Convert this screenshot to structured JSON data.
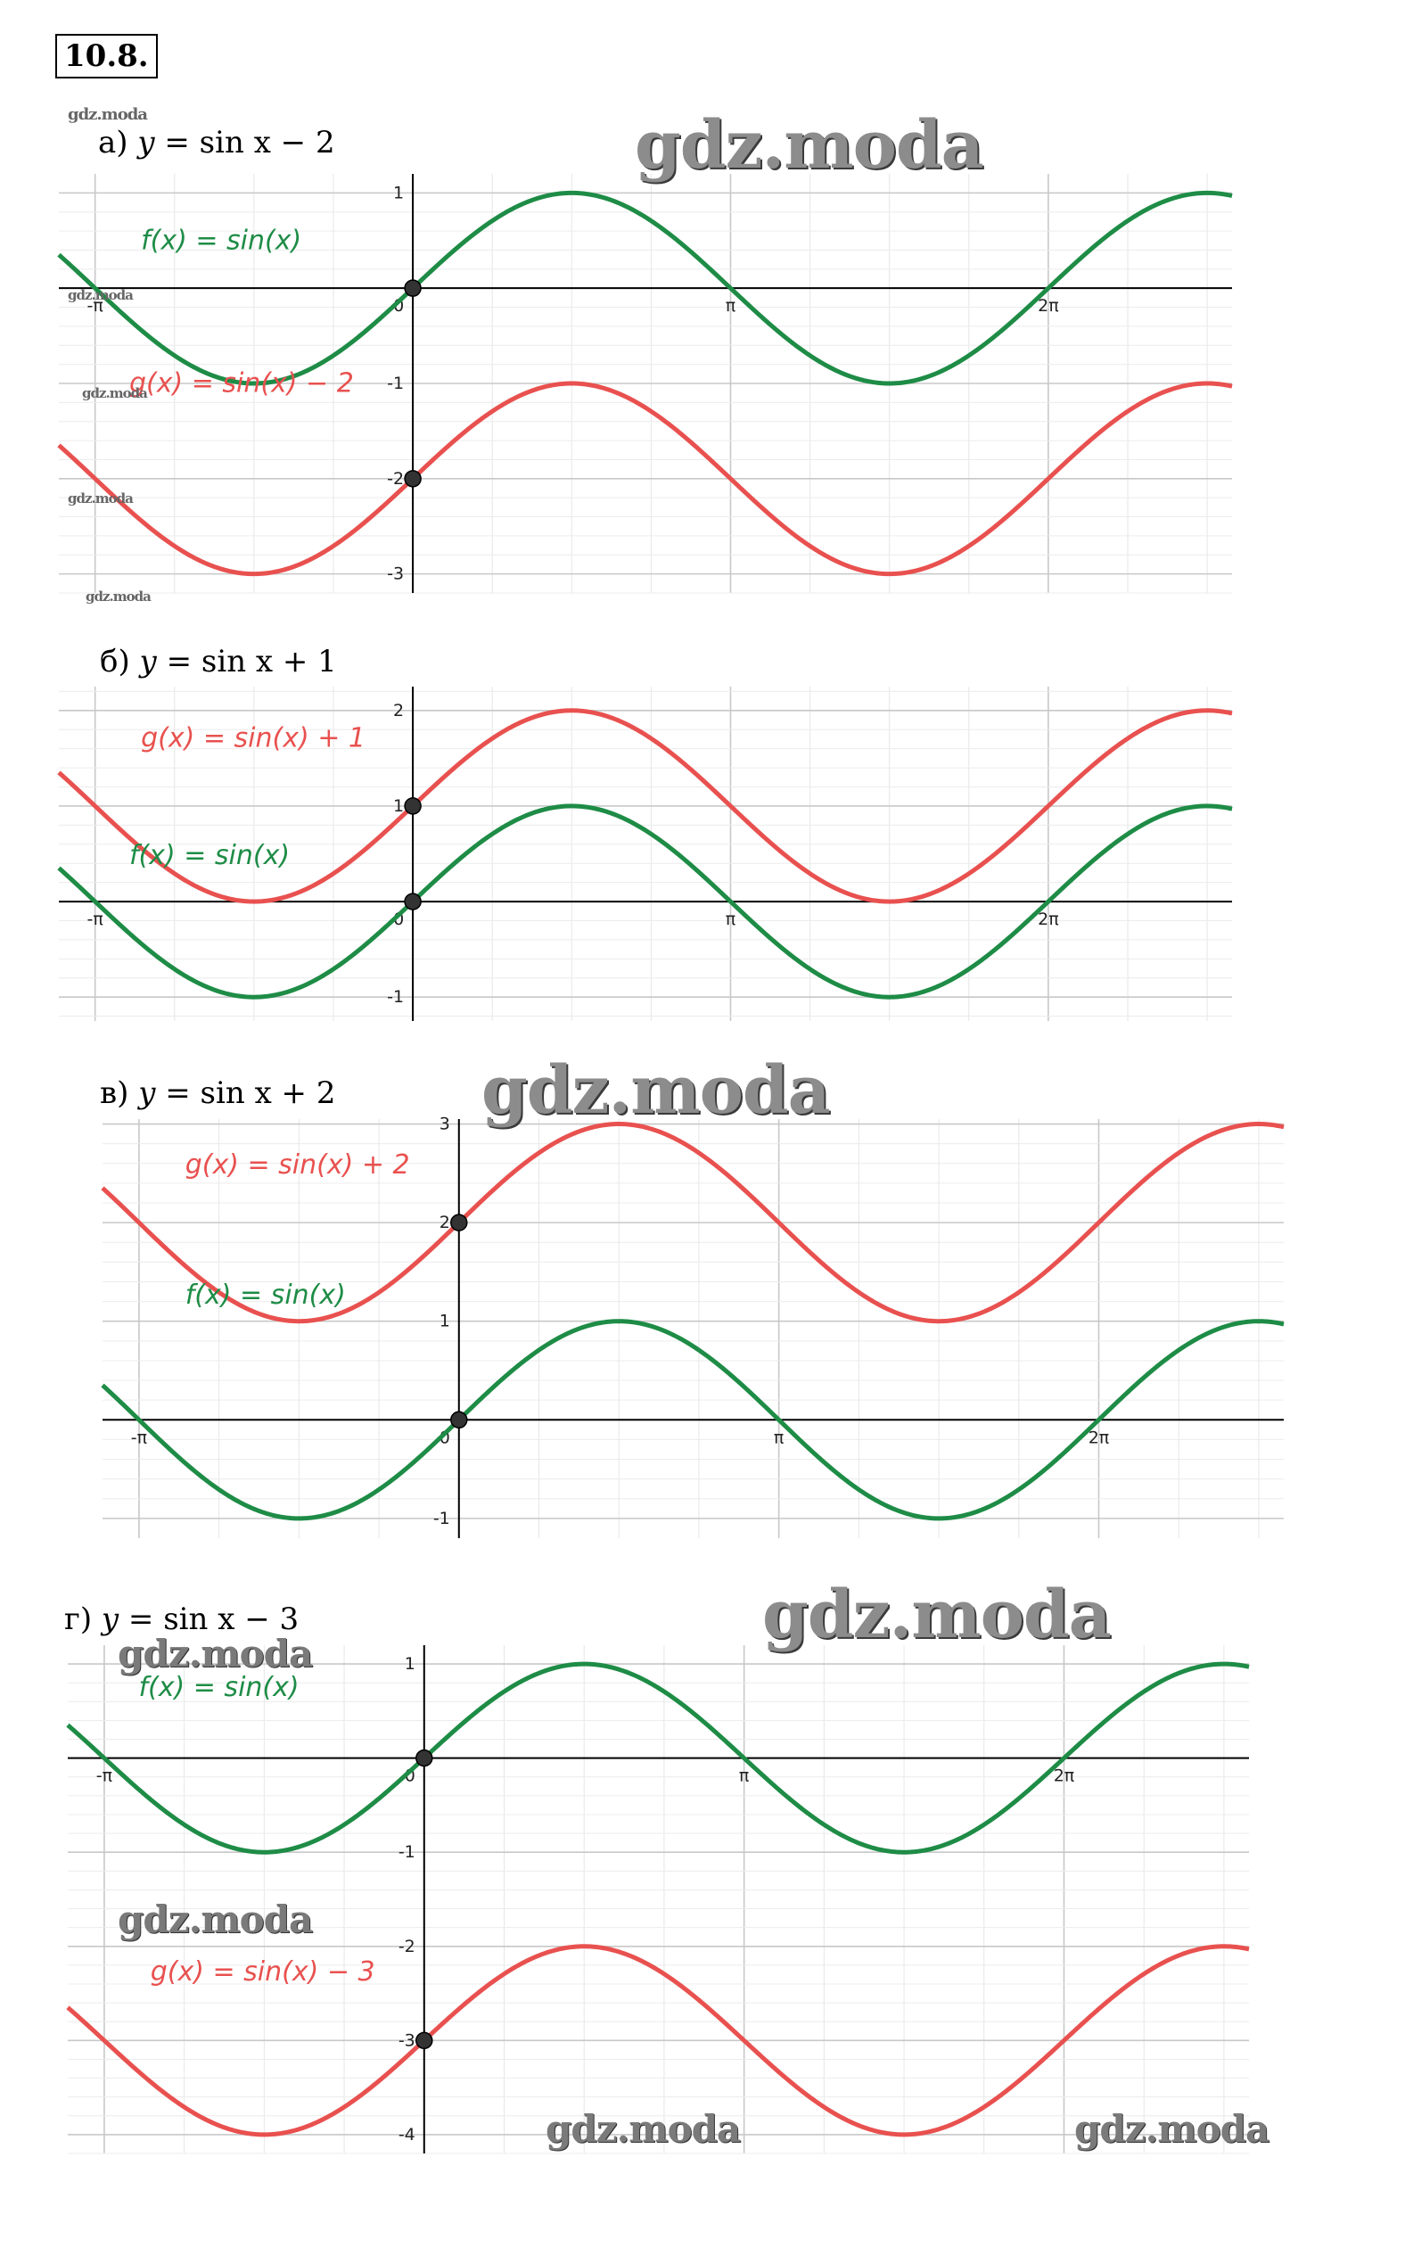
{
  "task_number": "10.8.",
  "watermarks": {
    "big": "gdz.moda",
    "small": "gdz.moda"
  },
  "colors": {
    "f_color": "#1e8c46",
    "g_color": "#e8514f",
    "grid": "#d9d9d9",
    "axis": "#000000",
    "point": "#333333"
  },
  "parts": [
    {
      "prefix": "а) ",
      "var": "y",
      "rest": " = sin x − 2"
    },
    {
      "prefix": "б) ",
      "var": "y",
      "rest": " = sin x + 1"
    },
    {
      "prefix": "в) ",
      "var": "y",
      "rest": " = sin x + 2"
    },
    {
      "prefix": "г) ",
      "var": "y",
      "rest": " = sin x − 3"
    }
  ],
  "chart_data": [
    {
      "type": "line",
      "xlim": [
        -3.5,
        8.1
      ],
      "ylim": [
        -3.2,
        1.2
      ],
      "xticks": [
        {
          "value": -3.14159,
          "label": "-π"
        },
        {
          "value": 0,
          "label": "0"
        },
        {
          "value": 3.14159,
          "label": "π"
        },
        {
          "value": 6.28319,
          "label": "2π"
        }
      ],
      "yticks": [
        {
          "value": 1,
          "label": "1"
        },
        {
          "value": -1,
          "label": "-1"
        },
        {
          "value": -2,
          "label": "-2"
        },
        {
          "value": -3,
          "label": "-3"
        }
      ],
      "series": [
        {
          "name": "f(x)  =  sin(x)",
          "shift": 0,
          "color": "#1e8c46"
        },
        {
          "name": "g(x)  =  sin(x) − 2",
          "shift": -2,
          "color": "#e8514f"
        }
      ],
      "points": [
        {
          "x": 0,
          "y": 0
        },
        {
          "x": 0,
          "y": -2
        }
      ]
    },
    {
      "type": "line",
      "xlim": [
        -3.5,
        8.1
      ],
      "ylim": [
        -1.25,
        2.25
      ],
      "xticks": [
        {
          "value": -3.14159,
          "label": "-π"
        },
        {
          "value": 0,
          "label": "0"
        },
        {
          "value": 3.14159,
          "label": "π"
        },
        {
          "value": 6.28319,
          "label": "2π"
        }
      ],
      "yticks": [
        {
          "value": 2,
          "label": "2"
        },
        {
          "value": 1,
          "label": "1"
        },
        {
          "value": -1,
          "label": "-1"
        }
      ],
      "series": [
        {
          "name": "g(x)  =  sin(x) + 1",
          "shift": 1,
          "color": "#e8514f"
        },
        {
          "name": "f(x)  =  sin(x)",
          "shift": 0,
          "color": "#1e8c46"
        }
      ],
      "points": [
        {
          "x": 0,
          "y": 1
        },
        {
          "x": 0,
          "y": 0
        }
      ]
    },
    {
      "type": "line",
      "xlim": [
        -3.5,
        8.1
      ],
      "ylim": [
        -1.2,
        3.05
      ],
      "xticks": [
        {
          "value": -3.14159,
          "label": "-π"
        },
        {
          "value": 0,
          "label": "0"
        },
        {
          "value": 3.14159,
          "label": "π"
        },
        {
          "value": 6.28319,
          "label": "2π"
        }
      ],
      "yticks": [
        {
          "value": 3,
          "label": "3"
        },
        {
          "value": 2,
          "label": "2"
        },
        {
          "value": 1,
          "label": "1"
        },
        {
          "value": -1,
          "label": "-1"
        }
      ],
      "series": [
        {
          "name": "g(x)  =  sin(x) + 2",
          "shift": 2,
          "color": "#e8514f"
        },
        {
          "name": "f(x)  =  sin(x)",
          "shift": 0,
          "color": "#1e8c46"
        }
      ],
      "points": [
        {
          "x": 0,
          "y": 2
        },
        {
          "x": 0,
          "y": 0
        }
      ]
    },
    {
      "type": "line",
      "xlim": [
        -3.5,
        8.1
      ],
      "ylim": [
        -4.2,
        1.2
      ],
      "xticks": [
        {
          "value": -3.14159,
          "label": "-π"
        },
        {
          "value": 0,
          "label": "0"
        },
        {
          "value": 3.14159,
          "label": "π"
        },
        {
          "value": 6.28319,
          "label": "2π"
        }
      ],
      "yticks": [
        {
          "value": 1,
          "label": "1"
        },
        {
          "value": -1,
          "label": "-1"
        },
        {
          "value": -2,
          "label": "-2"
        },
        {
          "value": -3,
          "label": "-3"
        },
        {
          "value": -4,
          "label": "-4"
        }
      ],
      "series": [
        {
          "name": "f(x)  =  sin(x)",
          "shift": 0,
          "color": "#1e8c46"
        },
        {
          "name": "g(x)  =  sin(x) − 3",
          "shift": -3,
          "color": "#e8514f"
        }
      ],
      "points": [
        {
          "x": 0,
          "y": 0
        },
        {
          "x": 0,
          "y": -3
        }
      ]
    }
  ]
}
